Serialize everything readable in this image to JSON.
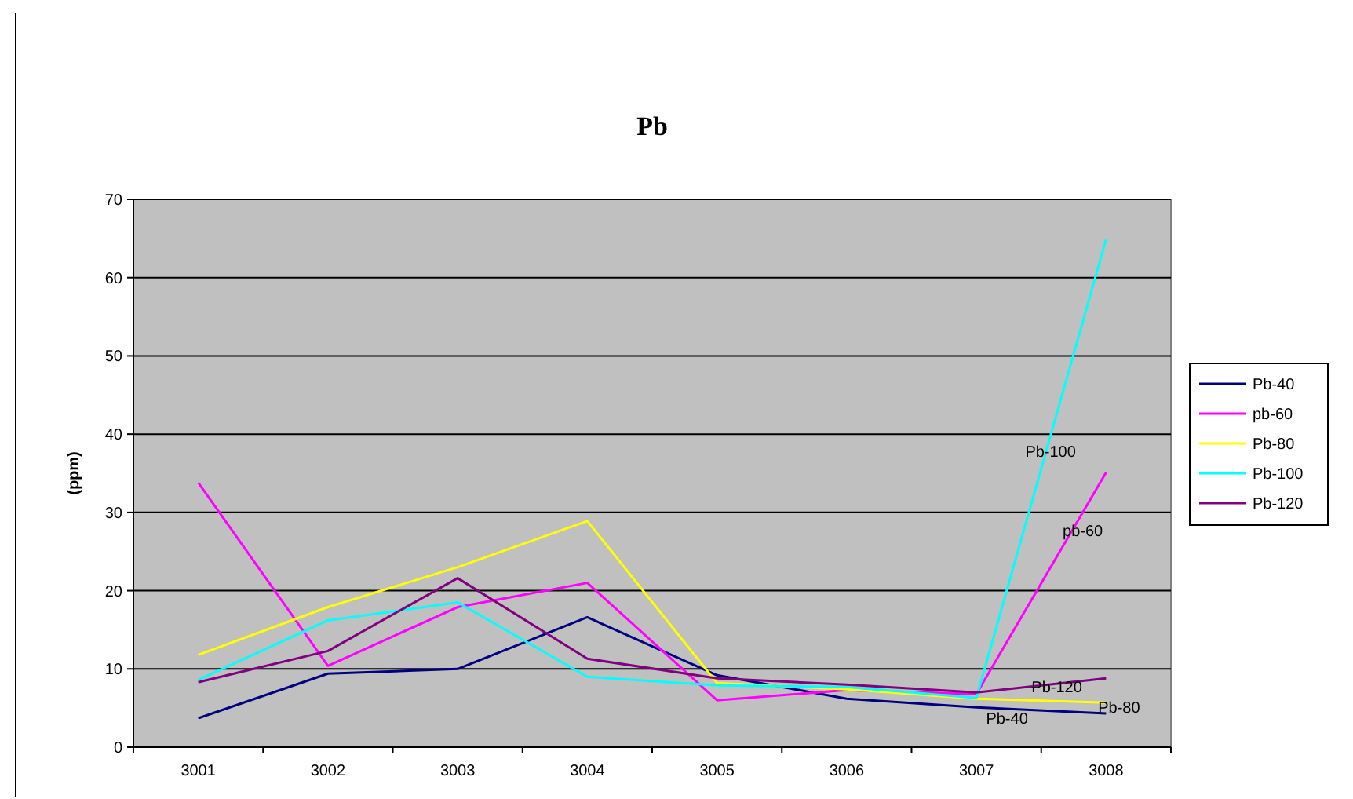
{
  "chart_data": {
    "type": "line",
    "title": "Pb",
    "ylabel": "(ppm)",
    "categories": [
      "3001",
      "3002",
      "3003",
      "3004",
      "3005",
      "3006",
      "3007",
      "3008"
    ],
    "series": [
      {
        "name": "Pb-40",
        "color": "#000080",
        "values": [
          3.7,
          9.4,
          10,
          16.6,
          9.2,
          6.2,
          5.1,
          4.3
        ]
      },
      {
        "name": "pb-60",
        "color": "#ff00ff",
        "values": [
          33.8,
          10.4,
          17.9,
          21,
          6,
          7.3,
          6.8,
          35.1
        ]
      },
      {
        "name": "Pb-80",
        "color": "#ffff00",
        "values": [
          11.8,
          17.9,
          23,
          28.9,
          8.2,
          7.4,
          6.2,
          5.7
        ]
      },
      {
        "name": "Pb-100",
        "color": "#00ffff",
        "values": [
          8.6,
          16.2,
          18.5,
          9,
          7.9,
          7.7,
          6.3,
          64.9
        ]
      },
      {
        "name": "Pb-120",
        "color": "#800080",
        "values": [
          8.3,
          12.3,
          21.6,
          11.3,
          8.8,
          8,
          7,
          8.8
        ]
      }
    ],
    "ylim": [
      0,
      70
    ],
    "yticks": [
      0,
      10,
      20,
      30,
      40,
      50,
      60,
      70
    ],
    "grid": "y",
    "legend": "right",
    "annotations": [
      "Pb-100",
      "pb-60",
      "Pb-120",
      "Pb-80",
      "Pb-40"
    ]
  }
}
